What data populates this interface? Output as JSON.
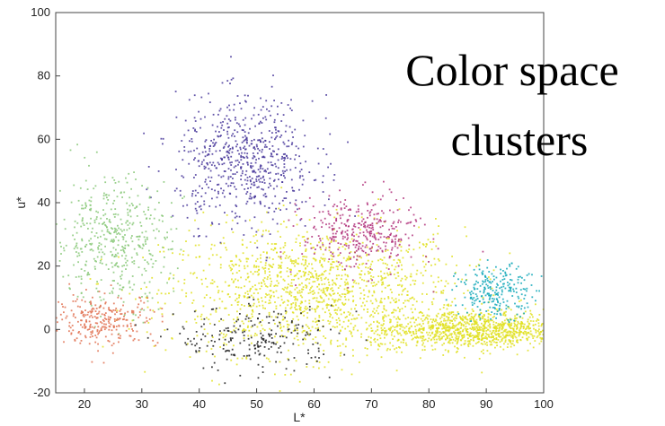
{
  "chart_data": {
    "type": "scatter",
    "title": "",
    "overlay_text": [
      "Color space",
      "clusters"
    ],
    "xlabel": "L*",
    "ylabel": "u*",
    "xlim": [
      15,
      100
    ],
    "ylim": [
      -20,
      100
    ],
    "xticks": [
      20,
      30,
      40,
      50,
      60,
      70,
      80,
      90,
      100
    ],
    "yticks": [
      -20,
      0,
      20,
      40,
      60,
      80,
      100
    ],
    "grid": false,
    "series": [
      {
        "color": "#e0e020",
        "clusters": [
          {
            "center": [
              60,
              12
            ],
            "spread": [
              13,
              10
            ],
            "count": 1400
          },
          {
            "center": [
              88,
              0
            ],
            "spread": [
              9,
              3
            ],
            "count": 1100
          }
        ]
      },
      {
        "color": "#46369a",
        "clusters": [
          {
            "center": [
              48,
              53
            ],
            "spread": [
              6,
              10
            ],
            "count": 650
          }
        ]
      },
      {
        "color": "#b0307a",
        "clusters": [
          {
            "center": [
              68,
              30
            ],
            "spread": [
              5,
              6
            ],
            "count": 350
          }
        ]
      },
      {
        "color": "#12a8b8",
        "clusters": [
          {
            "center": [
              92,
              12
            ],
            "spread": [
              3.5,
              4
            ],
            "count": 250
          }
        ]
      },
      {
        "color": "#88c878",
        "clusters": [
          {
            "center": [
              25,
              28
            ],
            "spread": [
              5,
              10
            ],
            "count": 450
          }
        ]
      },
      {
        "color": "#e07050",
        "clusters": [
          {
            "center": [
              23,
              3
            ],
            "spread": [
              5,
              4
            ],
            "count": 280
          }
        ]
      },
      {
        "color": "#202020",
        "clusters": [
          {
            "center": [
              50,
              -3
            ],
            "spread": [
              7,
              5
            ],
            "count": 220
          }
        ]
      }
    ]
  }
}
